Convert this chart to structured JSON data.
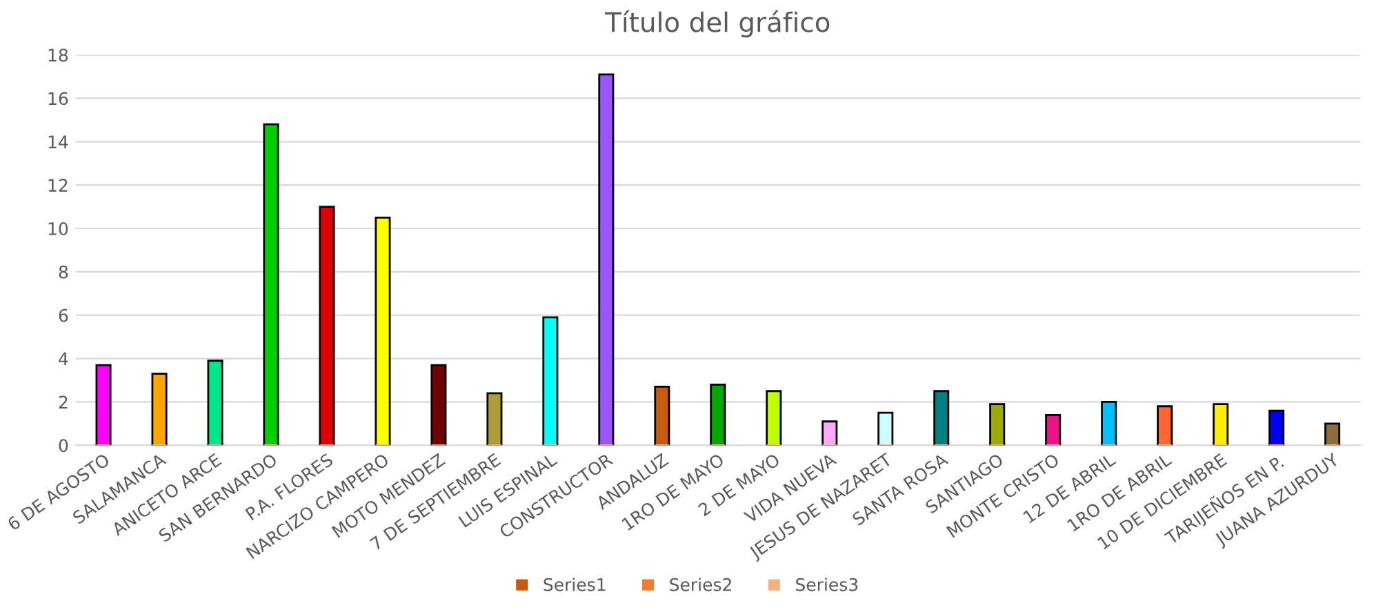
{
  "chart_data": {
    "type": "bar",
    "title": "Título del gráfico",
    "categories": [
      "6 DE AGOSTO",
      "SALAMANCA",
      "ANICETO ARCE",
      "SAN BERNARDO",
      "P.A. FLORES",
      "NARCIZO CAMPERO",
      "MOTO MENDEZ",
      "7 DE SEPTIEMBRE",
      "LUIS ESPINAL",
      "CONSTRUCTOR",
      "ANDALUZ",
      "1RO DE MAYO",
      "2 DE MAYO",
      "VIDA NUEVA",
      "JESUS DE NAZARET",
      "SANTA ROSA",
      "SANTIAGO",
      "MONTE CRISTO",
      "12 DE ABRIL",
      "1RO DE ABRIL",
      "10 DE DICIEMBRE",
      "TARIJEÑOS EN P.",
      "JUANA AZURDUY"
    ],
    "series": [
      {
        "name": "Series1",
        "color": "#c55a11",
        "values": [
          3.7,
          3.3,
          3.9,
          14.8,
          11.0,
          10.5,
          3.7,
          2.4,
          5.9,
          17.1,
          2.7,
          2.8,
          2.5,
          1.1,
          1.5,
          2.5,
          1.9,
          1.4,
          2.0,
          1.8,
          1.9,
          1.6,
          1.0
        ],
        "colors": [
          "#ff00ff",
          "#ffa500",
          "#00e68c",
          "#00d000",
          "#dd0000",
          "#ffff00",
          "#700000",
          "#b09a3c",
          "#00ffff",
          "#9955ff",
          "#c55a11",
          "#00a800",
          "#c0ff00",
          "#ffaaff",
          "#ccffff",
          "#008080",
          "#99aa00",
          "#ee1188",
          "#00bfff",
          "#ff6633",
          "#ffee00",
          "#0000ee",
          "#8c6e3c"
        ]
      },
      {
        "name": "Series2",
        "color": "#ed7d31",
        "values": [
          0,
          0,
          0,
          0,
          0,
          0,
          0,
          0,
          0,
          0,
          0,
          0,
          0,
          0,
          0,
          0,
          0,
          0,
          0,
          0,
          0,
          0,
          0
        ]
      },
      {
        "name": "Series3",
        "color": "#f4b183",
        "values": [
          0,
          0,
          0,
          0,
          0,
          0,
          0,
          0,
          0,
          0,
          0,
          0,
          0,
          0,
          0,
          0,
          0,
          0,
          0,
          0,
          0,
          0,
          0
        ]
      }
    ],
    "ylim": [
      0,
      18
    ],
    "yticks": [
      0,
      2,
      4,
      6,
      8,
      10,
      12,
      14,
      16,
      18
    ],
    "grid": "y",
    "legend": "bottom"
  }
}
